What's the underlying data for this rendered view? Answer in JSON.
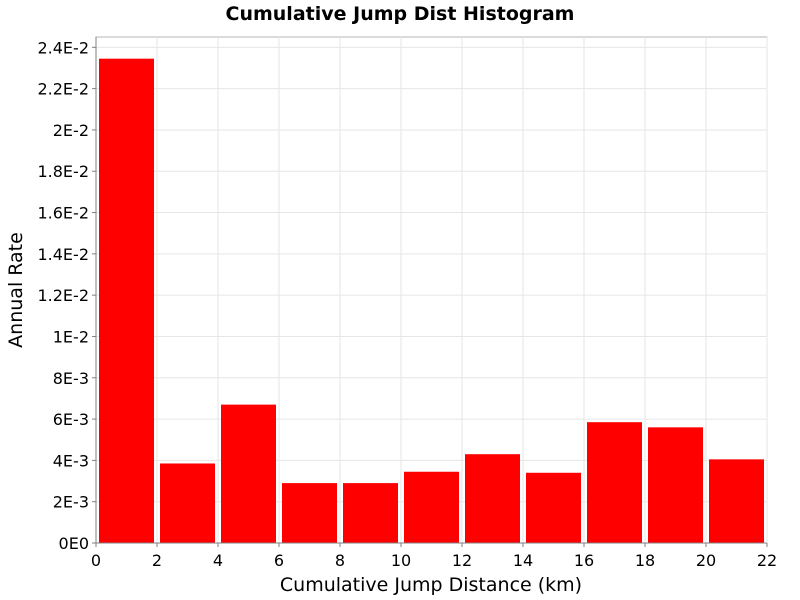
{
  "chart_data": {
    "type": "bar",
    "title": "Cumulative Jump Dist Histogram",
    "xlabel": "Cumulative Jump Distance (km)",
    "ylabel": "Annual Rate",
    "xlim": [
      0,
      22
    ],
    "ylim": [
      0,
      0.0245
    ],
    "x_ticks": [
      0,
      2,
      4,
      6,
      8,
      10,
      12,
      14,
      16,
      18,
      20,
      22
    ],
    "x_tick_labels": [
      "0",
      "2",
      "4",
      "6",
      "8",
      "10",
      "12",
      "14",
      "16",
      "18",
      "20",
      "22"
    ],
    "y_ticks": [
      0,
      0.002,
      0.004,
      0.006,
      0.008,
      0.01,
      0.012,
      0.014,
      0.016,
      0.018,
      0.02,
      0.022,
      0.024
    ],
    "y_tick_labels": [
      "0E0",
      "2E-3",
      "4E-3",
      "6E-3",
      "8E-3",
      "1E-2",
      "1.2E-2",
      "1.4E-2",
      "1.6E-2",
      "1.8E-2",
      "2E-2",
      "2.2E-2",
      "2.4E-2"
    ],
    "bin_width": 2,
    "bins": [
      {
        "x": 1,
        "value": 0.02345
      },
      {
        "x": 3,
        "value": 0.00385
      },
      {
        "x": 5,
        "value": 0.0067
      },
      {
        "x": 7,
        "value": 0.0029
      },
      {
        "x": 9,
        "value": 0.0029
      },
      {
        "x": 11,
        "value": 0.00345
      },
      {
        "x": 13,
        "value": 0.0043
      },
      {
        "x": 15,
        "value": 0.0034
      },
      {
        "x": 17,
        "value": 0.00585
      },
      {
        "x": 19,
        "value": 0.0056
      },
      {
        "x": 21,
        "value": 0.00405
      }
    ],
    "bar_color": "#ff0000",
    "grid": true
  }
}
